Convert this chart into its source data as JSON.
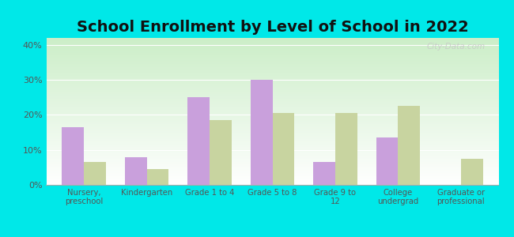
{
  "title": "School Enrollment by Level of School in 2022",
  "categories": [
    "Nursery,\npreschool",
    "Kindergarten",
    "Grade 1 to 4",
    "Grade 5 to 8",
    "Grade 9 to\n12",
    "College\nundergrad",
    "Graduate or\nprofessional"
  ],
  "northville_values": [
    16.5,
    8.0,
    25.0,
    30.0,
    6.5,
    13.5,
    0
  ],
  "newyork_values": [
    6.5,
    4.5,
    18.5,
    20.5,
    20.5,
    22.5,
    7.5
  ],
  "northville_color": "#c9a0dc",
  "newyork_color": "#c8d4a0",
  "background_outer": "#00e8e8",
  "background_inner_top": "#ffffff",
  "background_inner_bottom": "#d0eecc",
  "title_fontsize": 14,
  "ylim": [
    0,
    42
  ],
  "yticks": [
    0,
    10,
    20,
    30,
    40
  ],
  "ytick_labels": [
    "0%",
    "10%",
    "20%",
    "30%",
    "40%"
  ],
  "watermark": "City-Data.com",
  "bar_width": 0.35
}
